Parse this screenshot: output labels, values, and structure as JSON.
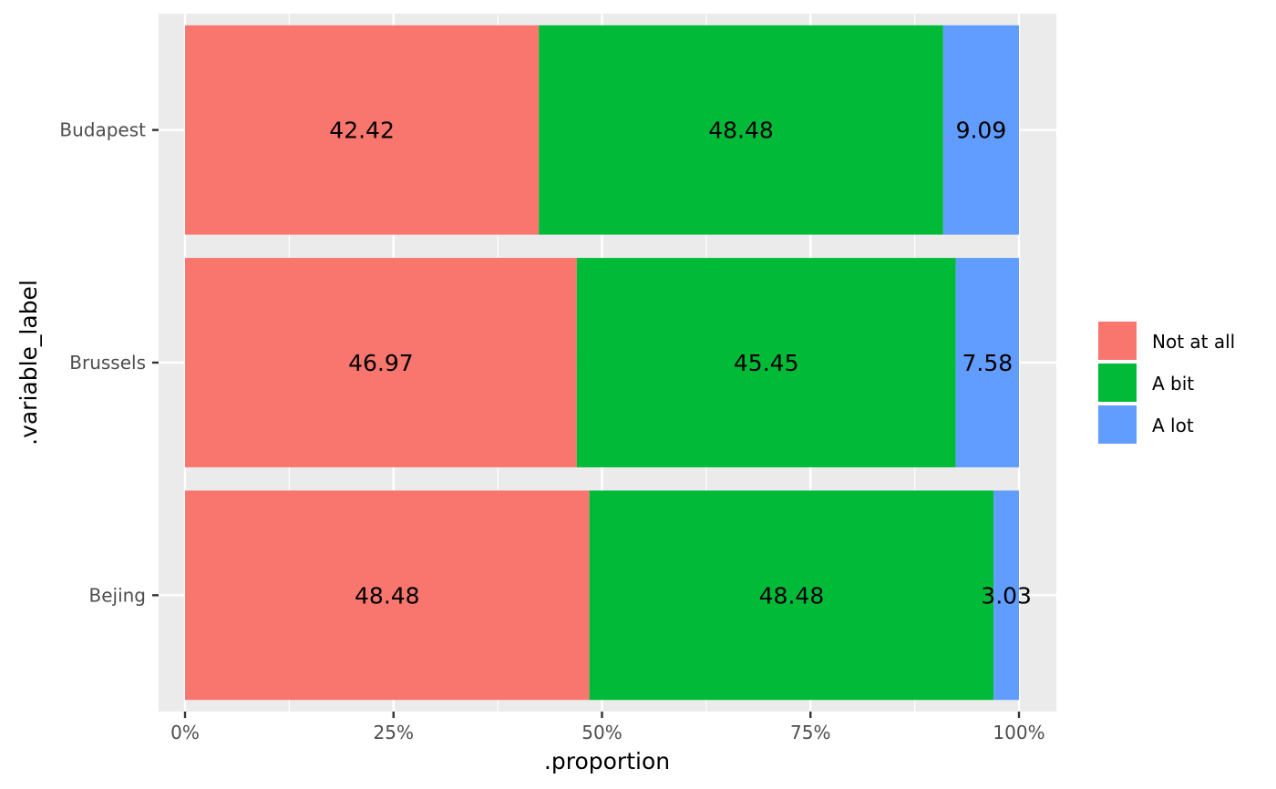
{
  "chart_data": {
    "type": "bar",
    "orientation": "horizontal",
    "stacked": "percent",
    "xlabel": ".proportion",
    "ylabel": ".variable_label",
    "xlim": [
      0,
      1
    ],
    "x_ticks": [
      0,
      0.25,
      0.5,
      0.75,
      1
    ],
    "x_tick_labels": [
      "0%",
      "25%",
      "50%",
      "75%",
      "100%"
    ],
    "categories": [
      "Bejing",
      "Brussels",
      "Budapest"
    ],
    "series": [
      {
        "name": "Not at all",
        "color": "#F8766D",
        "values": [
          48.48,
          46.97,
          42.42
        ],
        "labels": [
          "48.48",
          "46.97",
          "42.42"
        ]
      },
      {
        "name": "A bit",
        "color": "#00BA38",
        "values": [
          48.48,
          45.45,
          48.48
        ],
        "labels": [
          "48.48",
          "45.45",
          "48.48"
        ]
      },
      {
        "name": "A lot",
        "color": "#619CFF",
        "values": [
          3.03,
          7.58,
          9.09
        ],
        "labels": [
          "3.03",
          "7.58",
          "9.09"
        ]
      }
    ],
    "grid": true,
    "panel_background": "#EBEBEB",
    "legend_position": "right"
  }
}
